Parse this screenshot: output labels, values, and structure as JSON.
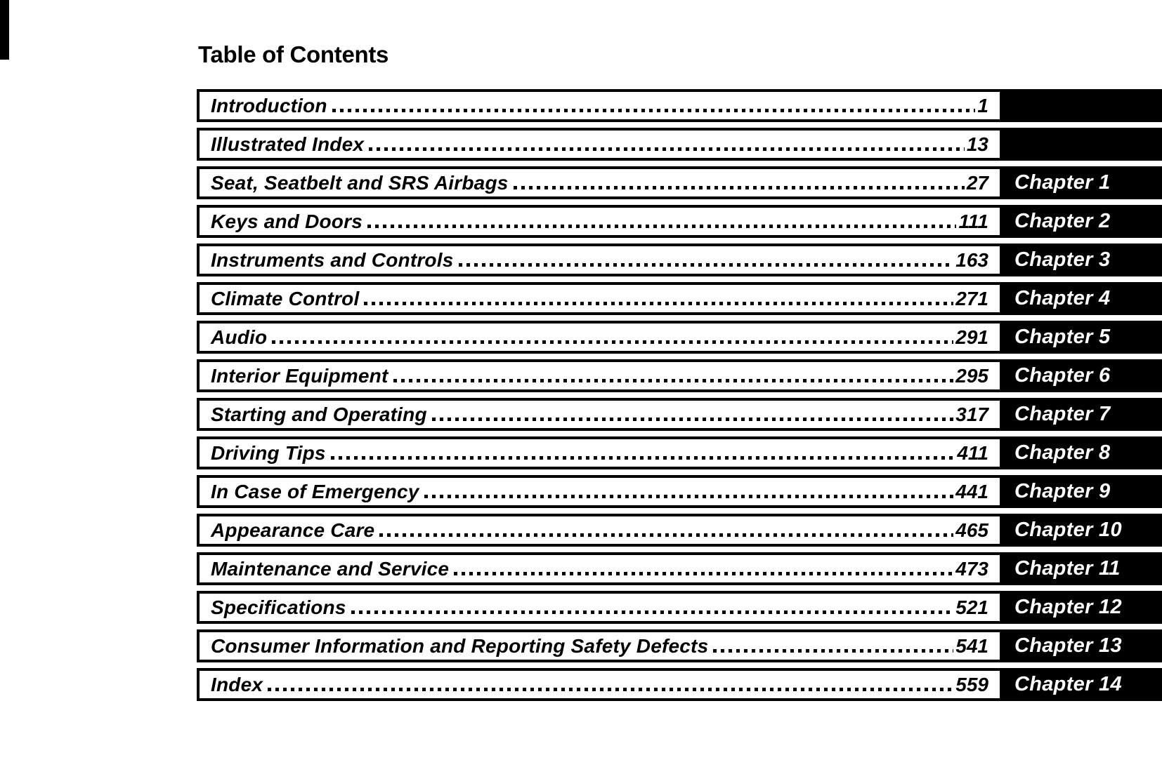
{
  "page": {
    "title": "Table of Contents"
  },
  "colors": {
    "paper": "#ffffff",
    "ink": "#000000",
    "tab_background": "#000000",
    "tab_text": "#ffffff"
  },
  "toc": {
    "items": [
      {
        "title": "Introduction",
        "page": "1",
        "chapter": ""
      },
      {
        "title": "Illustrated Index",
        "page": "13",
        "chapter": ""
      },
      {
        "title": "Seat, Seatbelt and SRS Airbags",
        "page": "27",
        "chapter": "Chapter 1"
      },
      {
        "title": "Keys and Doors",
        "page": "111",
        "chapter": "Chapter 2"
      },
      {
        "title": "Instruments and Controls",
        "page": "163",
        "chapter": "Chapter 3"
      },
      {
        "title": "Climate Control",
        "page": "271",
        "chapter": "Chapter 4"
      },
      {
        "title": "Audio",
        "page": "291",
        "chapter": "Chapter 5"
      },
      {
        "title": "Interior Equipment",
        "page": "295",
        "chapter": "Chapter 6"
      },
      {
        "title": "Starting and Operating",
        "page": "317",
        "chapter": "Chapter 7"
      },
      {
        "title": "Driving Tips",
        "page": "411",
        "chapter": "Chapter 8"
      },
      {
        "title": "In Case of Emergency",
        "page": "441",
        "chapter": "Chapter 9"
      },
      {
        "title": "Appearance Care",
        "page": "465",
        "chapter": "Chapter 10"
      },
      {
        "title": "Maintenance and Service",
        "page": "473",
        "chapter": "Chapter 11"
      },
      {
        "title": "Specifications",
        "page": "521",
        "chapter": "Chapter 12"
      },
      {
        "title": "Consumer Information and Reporting Safety Defects",
        "page": "541",
        "chapter": "Chapter 13"
      },
      {
        "title": "Index",
        "page": "559",
        "chapter": "Chapter 14"
      }
    ]
  }
}
